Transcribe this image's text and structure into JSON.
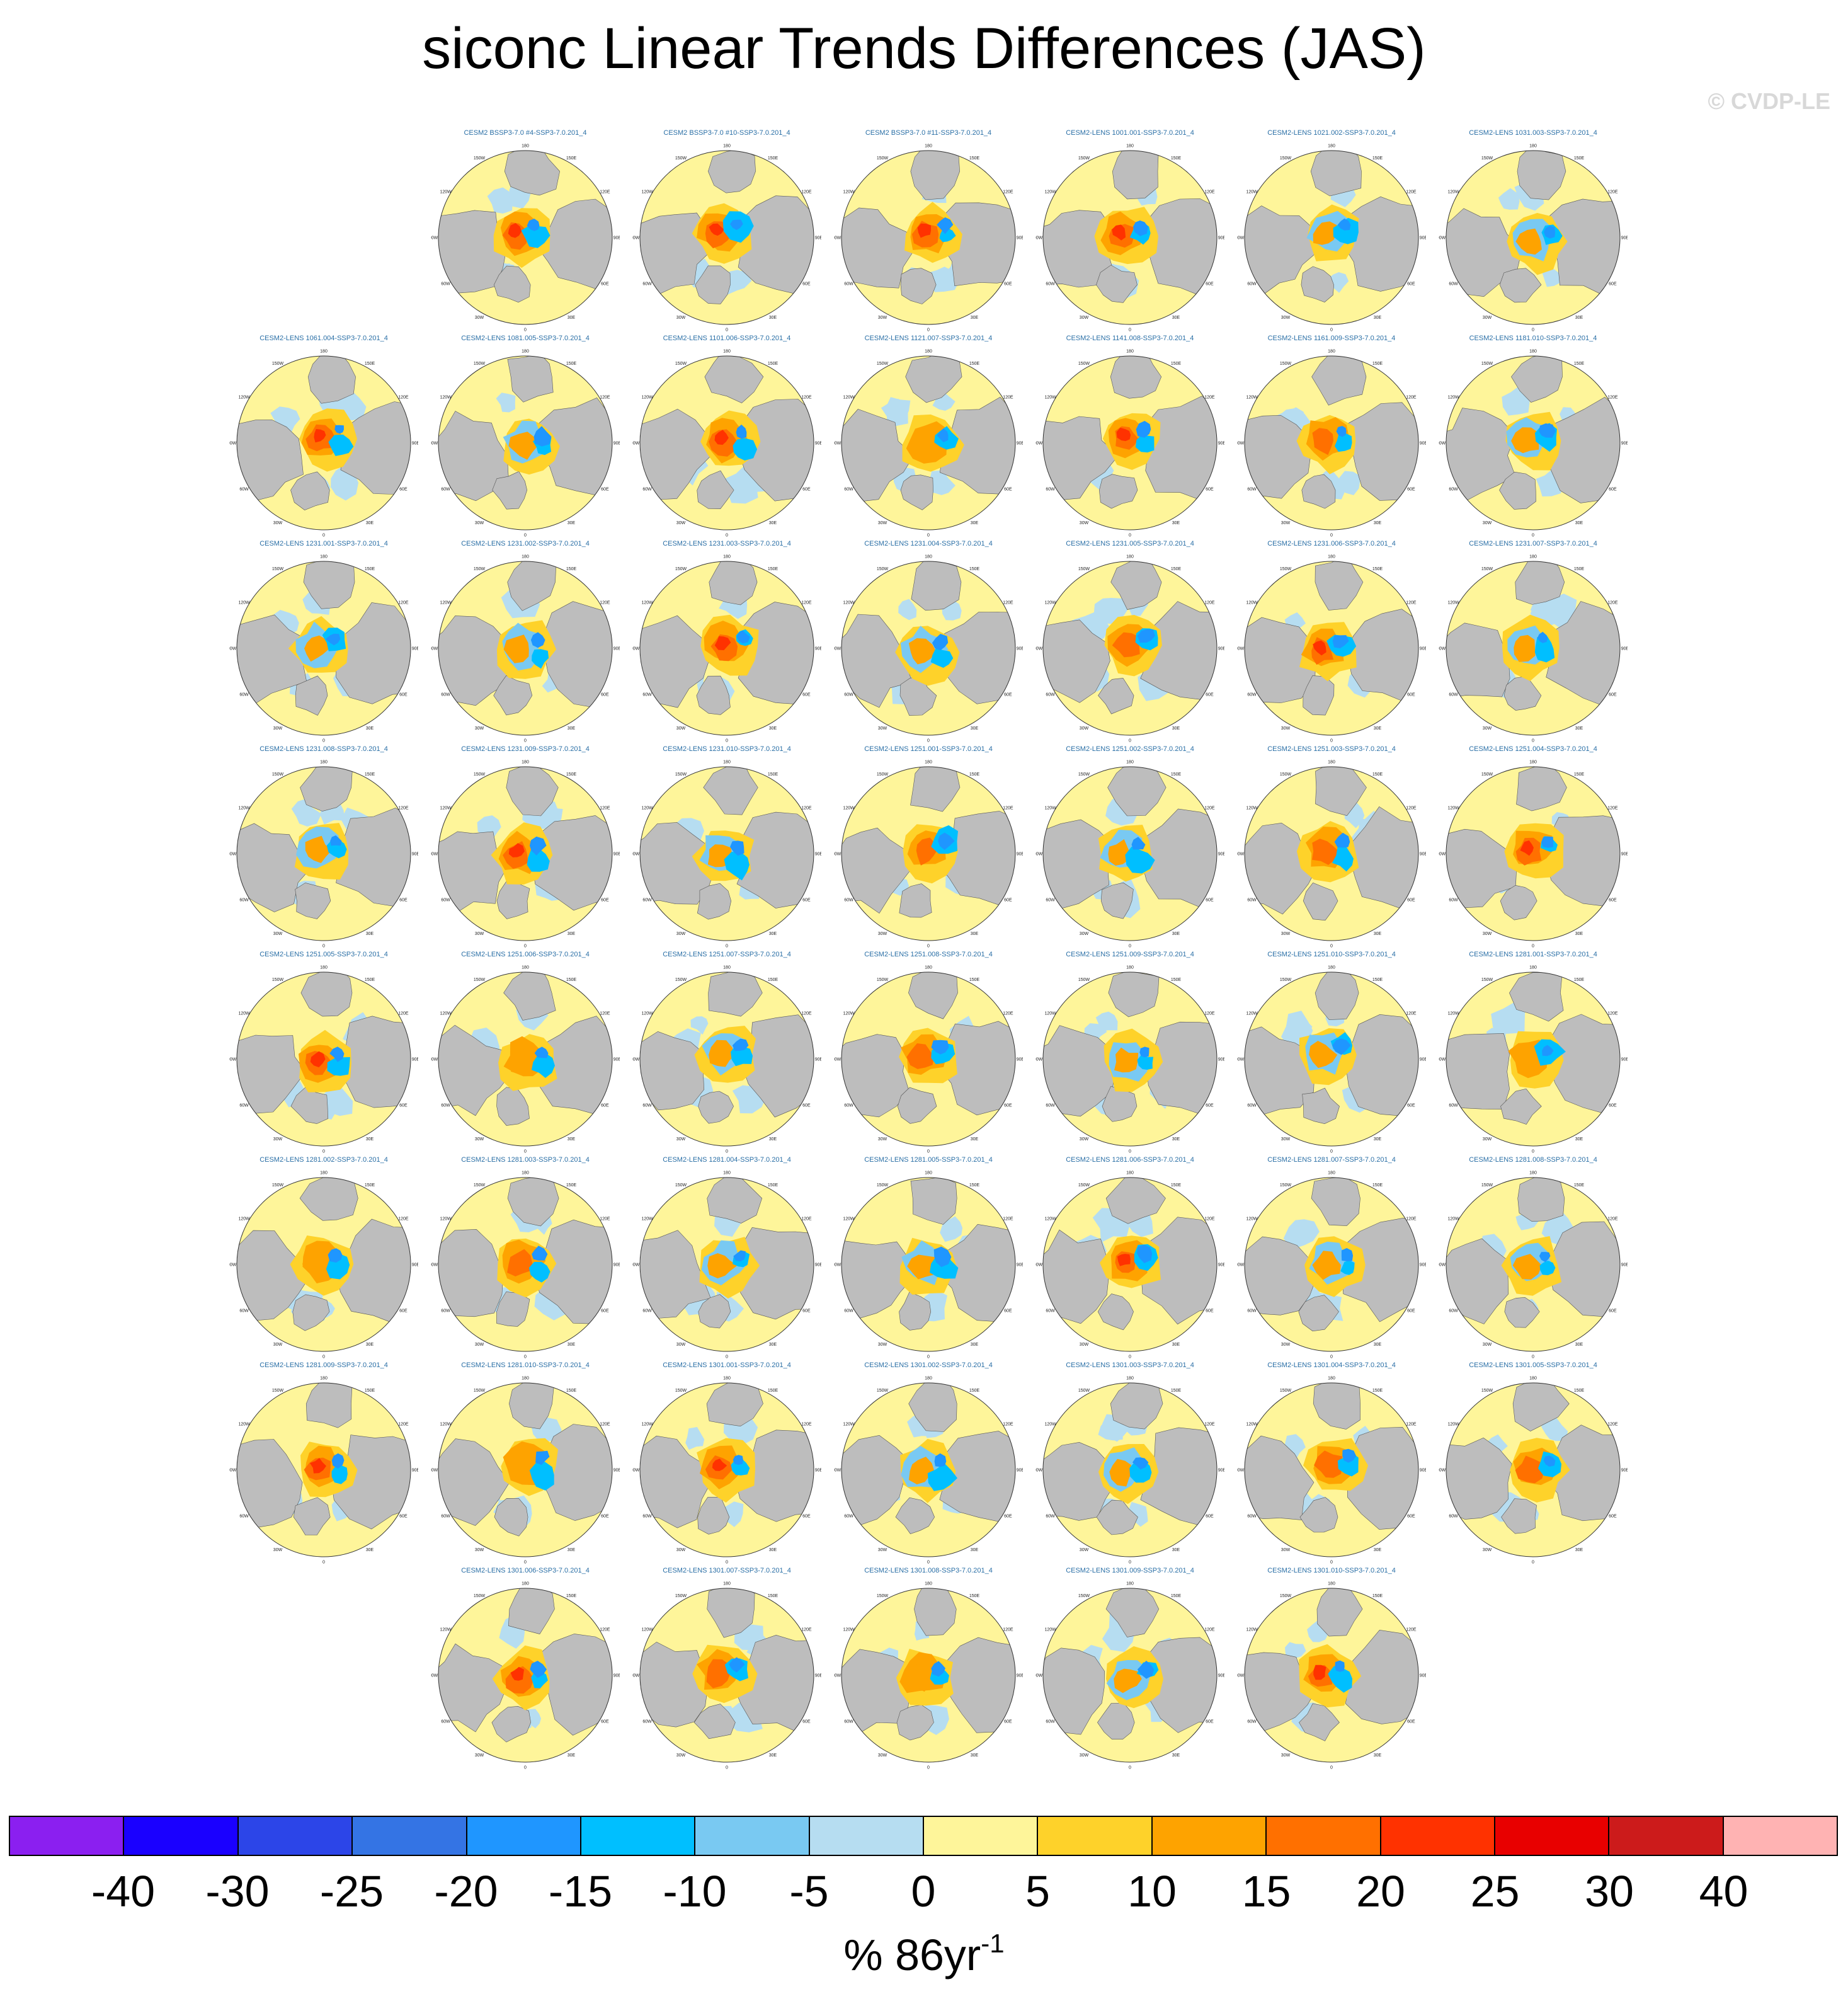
{
  "chart_data": {
    "type": "heatmap",
    "title": "siconc Linear Trends Differences (JAS)",
    "projection": "north polar stereographic",
    "watermark": "© CVDP-LE",
    "units_label": "% 86yr",
    "units_exponent": "-1",
    "longitude_labels": [
      "180",
      "150E",
      "120E",
      "90E",
      "60E",
      "30E",
      "0",
      "30W",
      "60W",
      "90W",
      "120W",
      "150W"
    ],
    "colorbar": {
      "boundaries": [
        "-40",
        "-30",
        "-25",
        "-20",
        "-15",
        "-10",
        "-5",
        "0",
        "5",
        "10",
        "15",
        "20",
        "25",
        "30",
        "40"
      ],
      "colors": [
        "#8b1ff0",
        "#1a00ff",
        "#2c45e8",
        "#3474e4",
        "#1f96ff",
        "#00bfff",
        "#79c9f2",
        "#b6ddf1",
        "#fef59a",
        "#fed22a",
        "#fea300",
        "#ff7000",
        "#ff3200",
        "#e80000",
        "#cc1b1b",
        "#ffb3b3"
      ]
    },
    "panel_rows": [
      {
        "start_col": 1,
        "titles": [
          "CESM2 BSSP3-7.0 #4-SSP3-7.0.201_4",
          "CESM2 BSSP3-7.0 #10-SSP3-7.0.201_4",
          "CESM2 BSSP3-7.0 #11-SSP3-7.0.201_4",
          "CESM2-LENS 1001.001-SSP3-7.0.201_4",
          "CESM2-LENS 1021.002-SSP3-7.0.201_4",
          "CESM2-LENS 1031.003-SSP3-7.0.201_4"
        ]
      },
      {
        "start_col": 0,
        "titles": [
          "CESM2-LENS 1061.004-SSP3-7.0.201_4",
          "CESM2-LENS 1081.005-SSP3-7.0.201_4",
          "CESM2-LENS 1101.006-SSP3-7.0.201_4",
          "CESM2-LENS 1121.007-SSP3-7.0.201_4",
          "CESM2-LENS 1141.008-SSP3-7.0.201_4",
          "CESM2-LENS 1161.009-SSP3-7.0.201_4",
          "CESM2-LENS 1181.010-SSP3-7.0.201_4"
        ]
      },
      {
        "start_col": 0,
        "titles": [
          "CESM2-LENS 1231.001-SSP3-7.0.201_4",
          "CESM2-LENS 1231.002-SSP3-7.0.201_4",
          "CESM2-LENS 1231.003-SSP3-7.0.201_4",
          "CESM2-LENS 1231.004-SSP3-7.0.201_4",
          "CESM2-LENS 1231.005-SSP3-7.0.201_4",
          "CESM2-LENS 1231.006-SSP3-7.0.201_4",
          "CESM2-LENS 1231.007-SSP3-7.0.201_4"
        ]
      },
      {
        "start_col": 0,
        "titles": [
          "CESM2-LENS 1231.008-SSP3-7.0.201_4",
          "CESM2-LENS 1231.009-SSP3-7.0.201_4",
          "CESM2-LENS 1231.010-SSP3-7.0.201_4",
          "CESM2-LENS 1251.001-SSP3-7.0.201_4",
          "CESM2-LENS 1251.002-SSP3-7.0.201_4",
          "CESM2-LENS 1251.003-SSP3-7.0.201_4",
          "CESM2-LENS 1251.004-SSP3-7.0.201_4"
        ]
      },
      {
        "start_col": 0,
        "titles": [
          "CESM2-LENS 1251.005-SSP3-7.0.201_4",
          "CESM2-LENS 1251.006-SSP3-7.0.201_4",
          "CESM2-LENS 1251.007-SSP3-7.0.201_4",
          "CESM2-LENS 1251.008-SSP3-7.0.201_4",
          "CESM2-LENS 1251.009-SSP3-7.0.201_4",
          "CESM2-LENS 1251.010-SSP3-7.0.201_4",
          "CESM2-LENS 1281.001-SSP3-7.0.201_4"
        ]
      },
      {
        "start_col": 0,
        "titles": [
          "CESM2-LENS 1281.002-SSP3-7.0.201_4",
          "CESM2-LENS 1281.003-SSP3-7.0.201_4",
          "CESM2-LENS 1281.004-SSP3-7.0.201_4",
          "CESM2-LENS 1281.005-SSP3-7.0.201_4",
          "CESM2-LENS 1281.006-SSP3-7.0.201_4",
          "CESM2-LENS 1281.007-SSP3-7.0.201_4",
          "CESM2-LENS 1281.008-SSP3-7.0.201_4"
        ]
      },
      {
        "start_col": 0,
        "titles": [
          "CESM2-LENS 1281.009-SSP3-7.0.201_4",
          "CESM2-LENS 1281.010-SSP3-7.0.201_4",
          "CESM2-LENS 1301.001-SSP3-7.0.201_4",
          "CESM2-LENS 1301.002-SSP3-7.0.201_4",
          "CESM2-LENS 1301.003-SSP3-7.0.201_4",
          "CESM2-LENS 1301.004-SSP3-7.0.201_4",
          "CESM2-LENS 1301.005-SSP3-7.0.201_4"
        ]
      },
      {
        "start_col": 1,
        "titles": [
          "CESM2-LENS 1301.006-SSP3-7.0.201_4",
          "CESM2-LENS 1301.007-SSP3-7.0.201_4",
          "CESM2-LENS 1301.008-SSP3-7.0.201_4",
          "CESM2-LENS 1301.009-SSP3-7.0.201_4",
          "CESM2-LENS 1301.010-SSP3-7.0.201_4"
        ]
      }
    ]
  }
}
